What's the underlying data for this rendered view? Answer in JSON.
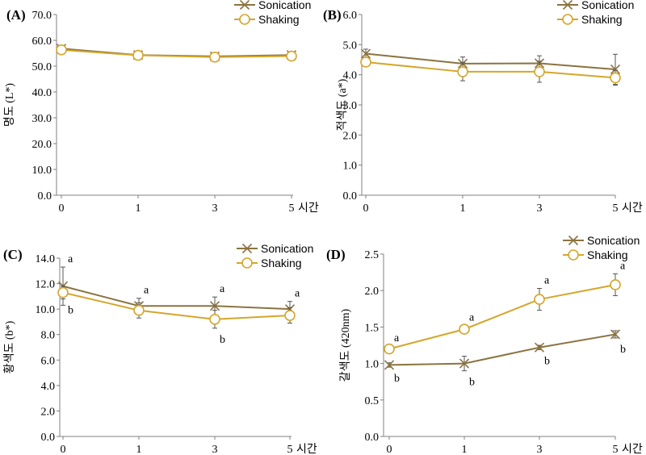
{
  "colors": {
    "sonication": "#8B7340",
    "shaking": "#D4A62A",
    "axis": "#808080",
    "errorbar": "#555555"
  },
  "chart_data": [
    {
      "type": "line",
      "panel_label": "(A)",
      "ylabel": "명도 (L*)",
      "xlabel": "",
      "categories": [
        "0",
        "1",
        "3",
        "5"
      ],
      "x_unit_label": "시간",
      "ylim": [
        0,
        70
      ],
      "yticks": [
        "0.0",
        "10.0",
        "20.0",
        "30.0",
        "40.0",
        "50.0",
        "60.0",
        "70.0"
      ],
      "grid": false,
      "legend": "top-right",
      "series": [
        {
          "name": "Sonication",
          "marker": "x",
          "values": [
            56.8,
            54.3,
            53.8,
            54.3
          ],
          "errors": [
            0.8,
            1.5,
            1.5,
            1.0
          ],
          "annotations": []
        },
        {
          "name": "Shaking",
          "marker": "o",
          "values": [
            56.3,
            54.2,
            53.5,
            53.9
          ],
          "errors": [
            0.8,
            1.2,
            1.2,
            1.0
          ],
          "annotations": []
        }
      ]
    },
    {
      "type": "line",
      "panel_label": "(B)",
      "ylabel": "적색도 (a*)",
      "xlabel": "",
      "categories": [
        "0",
        "1",
        "3",
        "5"
      ],
      "x_unit_label": "시간",
      "ylim": [
        0,
        6
      ],
      "yticks": [
        "0.0",
        "1.0",
        "2.0",
        "3.0",
        "4.0",
        "5.0",
        "6.0"
      ],
      "grid": false,
      "legend": "top-right",
      "series": [
        {
          "name": "Sonication",
          "marker": "x",
          "values": [
            4.7,
            4.37,
            4.38,
            4.18
          ],
          "errors": [
            0.15,
            0.22,
            0.25,
            0.5
          ],
          "annotations": []
        },
        {
          "name": "Shaking",
          "marker": "o",
          "values": [
            4.42,
            4.1,
            4.1,
            3.9
          ],
          "errors": [
            0.12,
            0.3,
            0.35,
            0.25
          ],
          "annotations": []
        }
      ]
    },
    {
      "type": "line",
      "panel_label": "(C)",
      "ylabel": "황색도 (b*)",
      "xlabel": "",
      "categories": [
        "0",
        "1",
        "3",
        "5"
      ],
      "x_unit_label": "시간",
      "ylim": [
        0,
        14
      ],
      "yticks": [
        "0.0",
        "2.0",
        "4.0",
        "6.0",
        "8.0",
        "10.0",
        "12.0",
        "14.0"
      ],
      "grid": false,
      "legend": "top-right",
      "series": [
        {
          "name": "Sonication",
          "marker": "x",
          "values": [
            11.8,
            10.25,
            10.25,
            10.0
          ],
          "errors": [
            1.5,
            0.6,
            0.7,
            0.6
          ],
          "annotations": [
            "a",
            "a",
            "a",
            "a"
          ]
        },
        {
          "name": "Shaking",
          "marker": "o",
          "values": [
            11.3,
            9.9,
            9.2,
            9.5
          ],
          "errors": [
            0.5,
            0.6,
            0.7,
            0.6
          ],
          "annotations": [
            "b",
            "",
            "b",
            ""
          ]
        }
      ]
    },
    {
      "type": "line",
      "panel_label": "(D)",
      "ylabel": "갈색도 (420nm)",
      "xlabel": "",
      "categories": [
        "0",
        "1",
        "3",
        "5"
      ],
      "x_unit_label": "시간",
      "ylim": [
        0,
        2.5
      ],
      "yticks": [
        "0.0",
        "0.5",
        "1.0",
        "1.5",
        "2.0",
        "2.5"
      ],
      "grid": false,
      "legend": "top-right",
      "series": [
        {
          "name": "Sonication",
          "marker": "x",
          "values": [
            0.98,
            1.0,
            1.22,
            1.4
          ],
          "errors": [
            0.03,
            0.1,
            0.03,
            0.05
          ],
          "annotations": [
            "b",
            "b",
            "b",
            "b"
          ]
        },
        {
          "name": "Shaking",
          "marker": "o",
          "values": [
            1.2,
            1.47,
            1.88,
            2.08
          ],
          "errors": [
            0.04,
            0.05,
            0.15,
            0.15
          ],
          "annotations": [
            "a",
            "a",
            "a",
            "a"
          ]
        }
      ]
    }
  ]
}
